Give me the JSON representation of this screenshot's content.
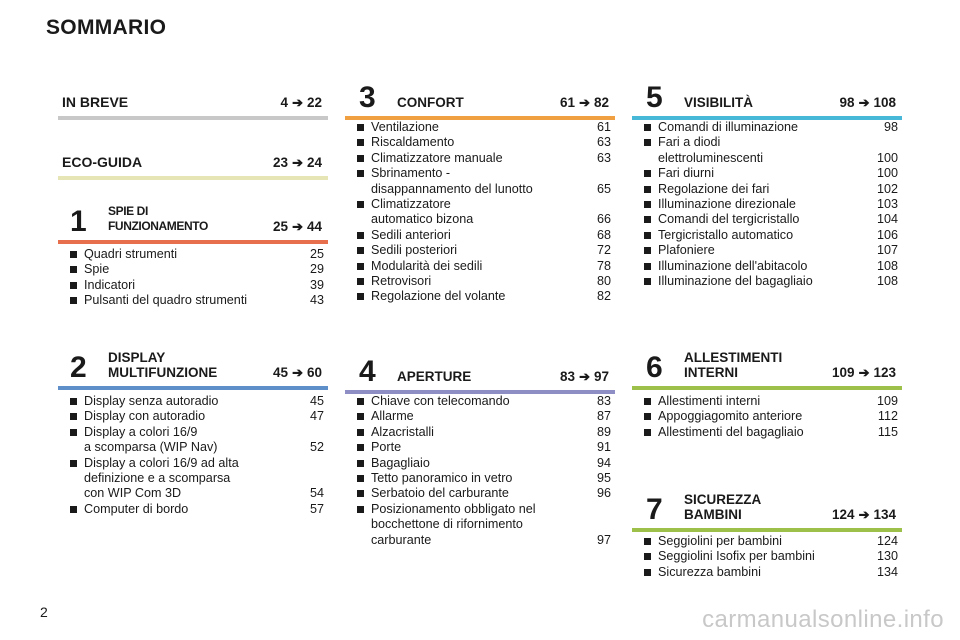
{
  "page_title": "SOMMARIO",
  "page_number": "2",
  "watermark": "carmanualsonline.info",
  "sections": {
    "in_breve": {
      "title": "IN BREVE",
      "range_start": "4",
      "range_end": "22",
      "color": "#c8c8c8",
      "arrow_icon": "arrow-right-icon"
    },
    "eco_guida": {
      "title": "ECO-GUIDA",
      "range_start": "23",
      "range_end": "24",
      "color": "#e5e5b6"
    },
    "s1": {
      "number": "1",
      "title_line1": "SPIE DI",
      "title_line2": "FUNZIONAMENTO",
      "range_start": "25",
      "range_end": "44",
      "color": "#e86f4e",
      "items": [
        {
          "label": "Quadri strumenti",
          "page": "25"
        },
        {
          "label": "Spie",
          "page": "29"
        },
        {
          "label": "Indicatori",
          "page": "39"
        },
        {
          "label": "Pulsanti del quadro strumenti",
          "page": "43"
        }
      ]
    },
    "s2": {
      "number": "2",
      "title_line1": "DISPLAY",
      "title_line2": "MULTIFUNZIONE",
      "range_start": "45",
      "range_end": "60",
      "color": "#5f8fc9",
      "items": [
        {
          "label": "Display senza autoradio",
          "page": "45"
        },
        {
          "label": "Display con autoradio",
          "page": "47"
        },
        {
          "label": "Display a colori 16/9",
          "label2": "a scomparsa (WIP Nav)",
          "page": "52"
        },
        {
          "label": "Display a colori 16/9 ad alta",
          "label2": "definizione e a scomparsa",
          "label3": "con WIP Com 3D",
          "page": "54"
        },
        {
          "label": "Computer di bordo",
          "page": "57"
        }
      ]
    },
    "s3": {
      "number": "3",
      "title": "CONFORT",
      "range_start": "61",
      "range_end": "82",
      "color": "#f0a040",
      "items": [
        {
          "label": "Ventilazione",
          "page": "61"
        },
        {
          "label": "Riscaldamento",
          "page": "63"
        },
        {
          "label": "Climatizzatore manuale",
          "page": "63"
        },
        {
          "label": "Sbrinamento -",
          "label2": "disappannamento del lunotto",
          "page": "65"
        },
        {
          "label": "Climatizzatore",
          "label2": "automatico bizona",
          "page": "66"
        },
        {
          "label": "Sedili anteriori",
          "page": "68"
        },
        {
          "label": "Sedili posteriori",
          "page": "72"
        },
        {
          "label": "Modularità dei sedili",
          "page": "78"
        },
        {
          "label": "Retrovisori",
          "page": "80"
        },
        {
          "label": "Regolazione del volante",
          "page": "82"
        }
      ]
    },
    "s4": {
      "number": "4",
      "title": "APERTURE",
      "range_start": "83",
      "range_end": "97",
      "color": "#8e8ec4",
      "items": [
        {
          "label": "Chiave con telecomando",
          "page": "83"
        },
        {
          "label": "Allarme",
          "page": "87"
        },
        {
          "label": "Alzacristalli",
          "page": "89"
        },
        {
          "label": "Porte",
          "page": "91"
        },
        {
          "label": "Bagagliaio",
          "page": "94"
        },
        {
          "label": "Tetto panoramico in vetro",
          "page": "95"
        },
        {
          "label": "Serbatoio del carburante",
          "page": "96"
        },
        {
          "label": "Posizionamento obbligato nel",
          "label2": "bocchettone di rifornimento",
          "label3": "carburante",
          "page": "97"
        }
      ]
    },
    "s5": {
      "number": "5",
      "title": "VISIBILITÀ",
      "range_start": "98",
      "range_end": "108",
      "color": "#48b8d8",
      "items": [
        {
          "label": "Comandi di illuminazione",
          "page": "98"
        },
        {
          "label": "Fari a diodi",
          "label2": "elettroluminescenti",
          "page": "100"
        },
        {
          "label": "Fari diurni",
          "page": "100"
        },
        {
          "label": "Regolazione dei fari",
          "page": "102"
        },
        {
          "label": "Illuminazione direzionale",
          "page": "103"
        },
        {
          "label": "Comandi del tergicristallo",
          "page": "104"
        },
        {
          "label": "Tergicristallo automatico",
          "page": "106"
        },
        {
          "label": "Plafoniere",
          "page": "107"
        },
        {
          "label": "Illuminazione dell'abitacolo",
          "page": "108"
        },
        {
          "label": "Illuminazione del bagagliaio",
          "page": "108"
        }
      ]
    },
    "s6": {
      "number": "6",
      "title_line1": "ALLESTIMENTI",
      "title_line2": "INTERNI",
      "range_start": "109",
      "range_end": "123",
      "color": "#9cc04a",
      "items": [
        {
          "label": "Allestimenti interni",
          "page": "109"
        },
        {
          "label": "Appoggiagomito anteriore",
          "page": "112"
        },
        {
          "label": "Allestimenti del bagagliaio",
          "page": "115"
        }
      ]
    },
    "s7": {
      "number": "7",
      "title_line1": "SICUREZZA",
      "title_line2": "BAMBINI",
      "range_start": "124",
      "range_end": "134",
      "color": "#9cc04a",
      "items": [
        {
          "label": "Seggiolini per bambini",
          "page": "124"
        },
        {
          "label": "Seggiolini Isofix per bambini",
          "page": "130"
        },
        {
          "label": "Sicurezza bambini",
          "page": "134"
        }
      ]
    }
  }
}
